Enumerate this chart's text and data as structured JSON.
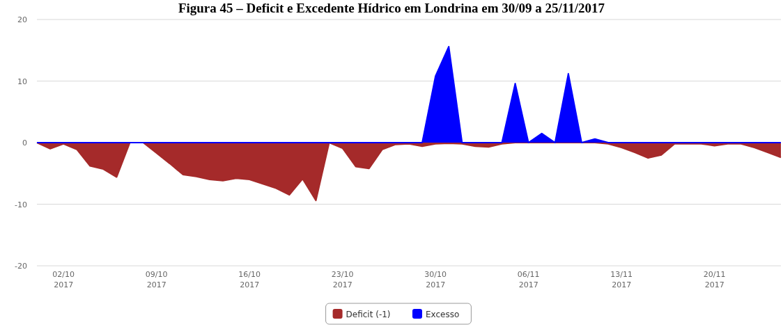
{
  "chart_data": {
    "type": "area",
    "title": "Figura 45 – Deficit e Excedente Hídrico em Londrina em 30/09 a 25/11/2017",
    "x": [
      "2017-09-30",
      "2017-10-01",
      "2017-10-02",
      "2017-10-03",
      "2017-10-04",
      "2017-10-05",
      "2017-10-06",
      "2017-10-07",
      "2017-10-08",
      "2017-10-09",
      "2017-10-10",
      "2017-10-11",
      "2017-10-12",
      "2017-10-13",
      "2017-10-14",
      "2017-10-15",
      "2017-10-16",
      "2017-10-17",
      "2017-10-18",
      "2017-10-19",
      "2017-10-20",
      "2017-10-21",
      "2017-10-22",
      "2017-10-23",
      "2017-10-24",
      "2017-10-25",
      "2017-10-26",
      "2017-10-27",
      "2017-10-28",
      "2017-10-29",
      "2017-10-30",
      "2017-10-31",
      "2017-11-01",
      "2017-11-02",
      "2017-11-03",
      "2017-11-04",
      "2017-11-05",
      "2017-11-06",
      "2017-11-07",
      "2017-11-08",
      "2017-11-09",
      "2017-11-10",
      "2017-11-11",
      "2017-11-12",
      "2017-11-13",
      "2017-11-14",
      "2017-11-15",
      "2017-11-16",
      "2017-11-17",
      "2017-11-18",
      "2017-11-19",
      "2017-11-20",
      "2017-11-21",
      "2017-11-22",
      "2017-11-23",
      "2017-11-24",
      "2017-11-25"
    ],
    "series": [
      {
        "name": "Deficit (-1)",
        "color": "#a52a2a",
        "values": [
          0,
          -1.0,
          -0.2,
          -1.1,
          -3.8,
          -4.3,
          -5.6,
          0,
          0,
          -1.7,
          -3.4,
          -5.2,
          -5.5,
          -6.0,
          -6.2,
          -5.8,
          -6.0,
          -6.7,
          -7.4,
          -8.5,
          -5.9,
          -9.4,
          0,
          -0.9,
          -3.9,
          -4.2,
          -1.1,
          -0.3,
          -0.2,
          -0.6,
          -0.2,
          -0.1,
          -0.2,
          -0.6,
          -0.7,
          -0.2,
          0,
          0,
          0,
          0,
          0,
          0,
          0,
          -0.2,
          -0.8,
          -1.6,
          -2.5,
          -2.0,
          -0.2,
          -0.2,
          -0.2,
          -0.5,
          -0.2,
          -0.2,
          -0.8,
          -1.6,
          -2.4
        ]
      },
      {
        "name": "Excesso",
        "color": "#0000ff",
        "values": [
          0,
          0,
          0,
          0,
          0,
          0,
          0,
          0,
          0,
          0,
          0,
          0,
          0,
          0,
          0,
          0,
          0,
          0,
          0,
          0,
          0,
          0,
          0,
          0,
          0,
          0,
          0,
          0,
          0,
          0,
          10.8,
          15.6,
          0,
          0,
          0,
          0,
          9.6,
          0,
          1.5,
          0,
          11.2,
          0,
          0.6,
          0,
          0,
          0,
          0,
          0,
          0,
          0,
          0,
          0,
          0,
          0,
          0,
          0,
          0
        ]
      }
    ],
    "xlim": [
      "2017-09-30",
      "2017-11-25"
    ],
    "xticks": [
      {
        "value": "2017-10-02",
        "label": "02/10\n2017"
      },
      {
        "value": "2017-10-09",
        "label": "09/10\n2017"
      },
      {
        "value": "2017-10-16",
        "label": "16/10\n2017"
      },
      {
        "value": "2017-10-23",
        "label": "23/10\n2017"
      },
      {
        "value": "2017-10-30",
        "label": "30/10\n2017"
      },
      {
        "value": "2017-11-06",
        "label": "06/11\n2017"
      },
      {
        "value": "2017-11-13",
        "label": "13/11\n2017"
      },
      {
        "value": "2017-11-20",
        "label": "20/11\n2017"
      }
    ],
    "ylim": [
      -20,
      20
    ],
    "yticks": [
      -20,
      -10,
      0,
      10,
      20
    ],
    "grid": "y",
    "legend": "bottom"
  }
}
